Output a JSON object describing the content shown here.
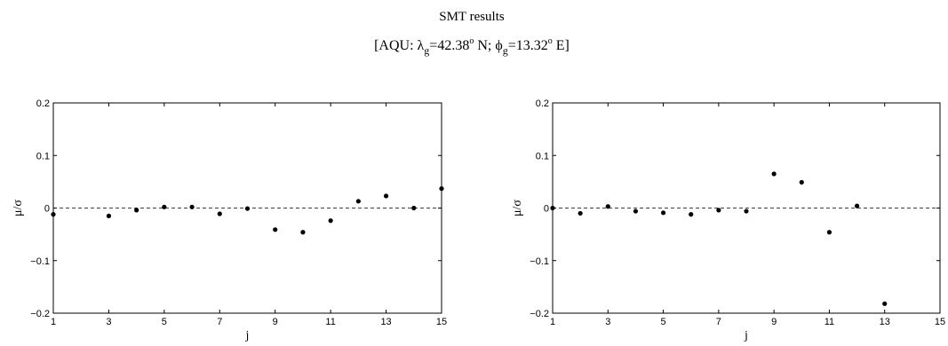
{
  "figure": {
    "title": "SMT results",
    "subtitle": {
      "prefix": "[AQU: ",
      "lambda_symbol": "λ",
      "lambda_sub": "g",
      "lambda_value": "=42.38",
      "lambda_unit": " N; ",
      "phi_symbol": "ϕ",
      "phi_sub": "g",
      "phi_value": "=13.32",
      "phi_unit": " E]",
      "degree": "o"
    }
  },
  "chart_data": [
    {
      "type": "scatter",
      "title": "",
      "xlabel": "j",
      "ylabel": "μ/σ",
      "xlim": [
        1,
        15
      ],
      "ylim": [
        -0.2,
        0.2
      ],
      "xticks": [
        1,
        3,
        5,
        7,
        9,
        11,
        13,
        15
      ],
      "xtick_labels": [
        "1",
        "3",
        "5",
        "7",
        "9",
        "11",
        "13",
        "15"
      ],
      "yticks": [
        -0.2,
        -0.1,
        0,
        0.1,
        0.2
      ],
      "ytick_labels": [
        "−0.2",
        "−0.1",
        "0",
        "0.1",
        "0.2"
      ],
      "reference_line": {
        "y": 0,
        "style": "dashed"
      },
      "grid": false,
      "x": [
        1,
        3,
        4,
        5,
        6,
        7,
        8,
        9,
        10,
        11,
        12,
        13,
        14,
        15
      ],
      "y": [
        -0.012,
        -0.015,
        -0.004,
        0.002,
        0.002,
        -0.011,
        -0.001,
        -0.041,
        -0.046,
        -0.024,
        0.013,
        0.023,
        0.0,
        0.037
      ],
      "marker_color": "#000000"
    },
    {
      "type": "scatter",
      "title": "",
      "xlabel": "j",
      "ylabel": "μ/σ",
      "xlim": [
        1,
        15
      ],
      "ylim": [
        -0.2,
        0.2
      ],
      "xticks": [
        1,
        3,
        5,
        7,
        9,
        11,
        13,
        15
      ],
      "xtick_labels": [
        "1",
        "3",
        "5",
        "7",
        "9",
        "11",
        "13",
        "15"
      ],
      "yticks": [
        -0.2,
        -0.1,
        0,
        0.1,
        0.2
      ],
      "ytick_labels": [
        "−0.2",
        "−0.1",
        "0",
        "0.1",
        "0.2"
      ],
      "reference_line": {
        "y": 0,
        "style": "dashed"
      },
      "grid": false,
      "x": [
        1,
        2,
        3,
        4,
        5,
        6,
        7,
        8,
        9,
        10,
        11,
        12,
        13
      ],
      "y": [
        0.0,
        -0.01,
        0.003,
        -0.006,
        -0.009,
        -0.012,
        -0.004,
        -0.006,
        0.065,
        0.049,
        -0.046,
        0.004,
        -0.182
      ],
      "marker_color": "#000000"
    }
  ]
}
